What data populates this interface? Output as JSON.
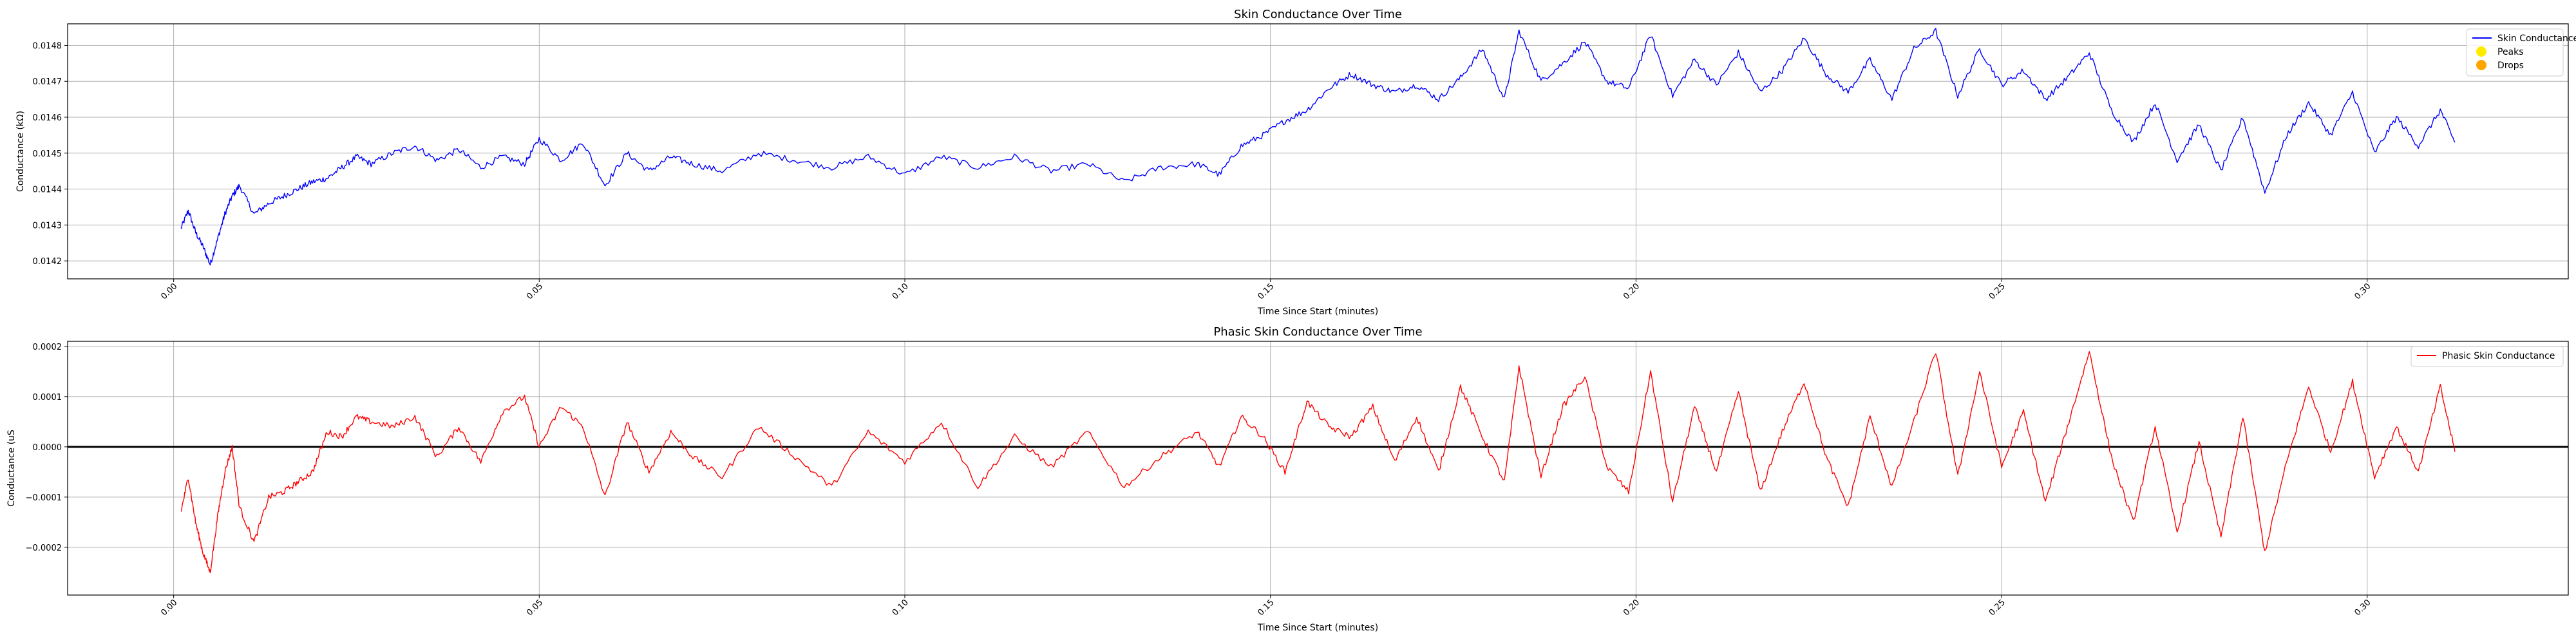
{
  "chart_data": [
    {
      "type": "line",
      "title": "Skin Conductance Over Time",
      "xlabel": "Time Since Start (minutes)",
      "ylabel": "Conductance (kΩ)",
      "xlim": [
        -0.0145,
        0.3275
      ],
      "ylim": [
        0.01415,
        0.01486
      ],
      "x_ticks": [
        0.0,
        0.05,
        0.1,
        0.15,
        0.2,
        0.25,
        0.3
      ],
      "x_tick_labels": [
        "0.00",
        "0.05",
        "0.10",
        "0.15",
        "0.20",
        "0.25",
        "0.30"
      ],
      "y_ticks": [
        0.0142,
        0.0143,
        0.0144,
        0.0145,
        0.0146,
        0.0147,
        0.0148
      ],
      "y_tick_labels": [
        "0.0142",
        "0.0143",
        "0.0144",
        "0.0145",
        "0.0146",
        "0.0147",
        "0.0148"
      ],
      "grid": true,
      "legend_position": "top-right",
      "series": [
        {
          "name": "Skin Conductance",
          "color": "#0000ff",
          "x": [
            0.001,
            0.002,
            0.003,
            0.004,
            0.005,
            0.006,
            0.007,
            0.008,
            0.009,
            0.011,
            0.013,
            0.015,
            0.017,
            0.019,
            0.021,
            0.023,
            0.025,
            0.027,
            0.03,
            0.033,
            0.036,
            0.039,
            0.042,
            0.045,
            0.048,
            0.05,
            0.053,
            0.056,
            0.059,
            0.062,
            0.065,
            0.068,
            0.071,
            0.075,
            0.08,
            0.085,
            0.09,
            0.095,
            0.1,
            0.105,
            0.11,
            0.115,
            0.12,
            0.125,
            0.13,
            0.135,
            0.14,
            0.143,
            0.146,
            0.149,
            0.152,
            0.155,
            0.158,
            0.161,
            0.164,
            0.167,
            0.17,
            0.173,
            0.176,
            0.179,
            0.182,
            0.184,
            0.187,
            0.19,
            0.193,
            0.196,
            0.199,
            0.202,
            0.205,
            0.208,
            0.211,
            0.214,
            0.217,
            0.22,
            0.223,
            0.226,
            0.229,
            0.232,
            0.235,
            0.238,
            0.241,
            0.244,
            0.247,
            0.25,
            0.253,
            0.256,
            0.259,
            0.262,
            0.265,
            0.268,
            0.271,
            0.274,
            0.277,
            0.28,
            0.283,
            0.286,
            0.289,
            0.292,
            0.295,
            0.298,
            0.301,
            0.304,
            0.307,
            0.31,
            0.312
          ],
          "y": [
            0.01429,
            0.01434,
            0.01428,
            0.01424,
            0.01419,
            0.01426,
            0.01433,
            0.01438,
            0.01441,
            0.01433,
            0.01436,
            0.01438,
            0.0144,
            0.01442,
            0.01443,
            0.01446,
            0.01449,
            0.01447,
            0.0145,
            0.01452,
            0.01448,
            0.01451,
            0.01446,
            0.01449,
            0.01447,
            0.01454,
            0.01448,
            0.01453,
            0.01441,
            0.0145,
            0.01445,
            0.01449,
            0.01447,
            0.01445,
            0.0145,
            0.01448,
            0.01446,
            0.01449,
            0.01444,
            0.01449,
            0.01446,
            0.01449,
            0.01445,
            0.01447,
            0.01442,
            0.01446,
            0.01447,
            0.01444,
            0.01452,
            0.01455,
            0.01459,
            0.01462,
            0.01468,
            0.01472,
            0.01469,
            0.01467,
            0.01469,
            0.01465,
            0.01471,
            0.01479,
            0.01465,
            0.01484,
            0.0147,
            0.01475,
            0.01481,
            0.0147,
            0.01468,
            0.01483,
            0.01466,
            0.01476,
            0.01469,
            0.01478,
            0.01467,
            0.01473,
            0.01482,
            0.01472,
            0.01467,
            0.01476,
            0.01465,
            0.01479,
            0.01484,
            0.01466,
            0.01479,
            0.01469,
            0.01473,
            0.01465,
            0.01471,
            0.01478,
            0.01462,
            0.01453,
            0.01464,
            0.01448,
            0.01458,
            0.01445,
            0.0146,
            0.01439,
            0.01455,
            0.01464,
            0.01455,
            0.01467,
            0.0145,
            0.0146,
            0.01452,
            0.01462,
            0.01453
          ]
        },
        {
          "name": "Peaks",
          "color": "#ffeb00",
          "marker": "circle",
          "x": [],
          "y": []
        },
        {
          "name": "Drops",
          "color": "#ffa500",
          "marker": "circle",
          "x": [],
          "y": []
        }
      ]
    },
    {
      "type": "line",
      "title": "Phasic Skin Conductance Over Time",
      "xlabel": "Time Since Start (minutes)",
      "ylabel": "Conductance (uS",
      "xlim": [
        -0.0145,
        0.3275
      ],
      "ylim": [
        -0.000295,
        0.00021
      ],
      "x_ticks": [
        0.0,
        0.05,
        0.1,
        0.15,
        0.2,
        0.25,
        0.3
      ],
      "x_tick_labels": [
        "0.00",
        "0.05",
        "0.10",
        "0.15",
        "0.20",
        "0.25",
        "0.30"
      ],
      "y_ticks": [
        -0.0002,
        -0.0001,
        0.0,
        0.0001,
        0.0002
      ],
      "y_tick_labels": [
        "−0.0002",
        "−0.0001",
        "0.0000",
        "0.0001",
        "0.0002"
      ],
      "zero_line": 0.0,
      "grid": true,
      "legend_position": "top-right",
      "series": [
        {
          "name": "Phasic Skin Conductance",
          "color": "#ff0000",
          "x": [
            0.001,
            0.002,
            0.003,
            0.004,
            0.005,
            0.006,
            0.007,
            0.008,
            0.009,
            0.011,
            0.013,
            0.015,
            0.017,
            0.019,
            0.021,
            0.023,
            0.025,
            0.027,
            0.03,
            0.033,
            0.036,
            0.039,
            0.042,
            0.045,
            0.048,
            0.05,
            0.053,
            0.056,
            0.059,
            0.062,
            0.065,
            0.068,
            0.071,
            0.075,
            0.08,
            0.085,
            0.09,
            0.095,
            0.1,
            0.105,
            0.11,
            0.115,
            0.12,
            0.125,
            0.13,
            0.135,
            0.14,
            0.143,
            0.146,
            0.149,
            0.152,
            0.155,
            0.158,
            0.161,
            0.164,
            0.167,
            0.17,
            0.173,
            0.176,
            0.179,
            0.182,
            0.184,
            0.187,
            0.19,
            0.193,
            0.196,
            0.199,
            0.202,
            0.205,
            0.208,
            0.211,
            0.214,
            0.217,
            0.22,
            0.223,
            0.226,
            0.229,
            0.232,
            0.235,
            0.238,
            0.241,
            0.244,
            0.247,
            0.25,
            0.253,
            0.256,
            0.259,
            0.262,
            0.265,
            0.268,
            0.271,
            0.274,
            0.277,
            0.28,
            0.283,
            0.286,
            0.289,
            0.292,
            0.295,
            0.298,
            0.301,
            0.304,
            0.307,
            0.31,
            0.312
          ],
          "y": [
            -0.00013,
            -6e-05,
            -0.00015,
            -0.00021,
            -0.00025,
            -0.00014,
            -5e-05,
            0.0,
            -0.00012,
            -0.00019,
            -0.0001,
            -9e-05,
            -7e-05,
            -5e-05,
            3e-05,
            2e-05,
            6e-05,
            5e-05,
            4e-05,
            6e-05,
            -2e-05,
            4e-05,
            -3e-05,
            7e-05,
            0.0001,
            0.0,
            8e-05,
            4e-05,
            -0.0001,
            5e-05,
            -5e-05,
            3e-05,
            -2e-05,
            -6e-05,
            4e-05,
            -2e-05,
            -8e-05,
            3e-05,
            -3e-05,
            5e-05,
            -8e-05,
            2e-05,
            -4e-05,
            3e-05,
            -8e-05,
            -2e-05,
            3e-05,
            -4e-05,
            6e-05,
            2e-05,
            -5e-05,
            9e-05,
            4e-05,
            2e-05,
            8e-05,
            -3e-05,
            6e-05,
            -5e-05,
            0.00012,
            2e-05,
            -7e-05,
            0.00016,
            -6e-05,
            8e-05,
            0.00014,
            -4e-05,
            -9e-05,
            0.00015,
            -0.00011,
            8e-05,
            -5e-05,
            0.00011,
            -9e-05,
            3e-05,
            0.00013,
            -2e-05,
            -0.00012,
            6e-05,
            -8e-05,
            5e-05,
            0.00019,
            -6e-05,
            0.00015,
            -4e-05,
            7e-05,
            -0.00011,
            4e-05,
            0.00019,
            -2e-05,
            -0.00015,
            4e-05,
            -0.00017,
            1e-05,
            -0.00018,
            6e-05,
            -0.00021,
            -3e-05,
            0.00012,
            -1e-05,
            0.00013,
            -6e-05,
            4e-05,
            -5e-05,
            0.00012,
            -1e-05
          ]
        }
      ]
    }
  ]
}
